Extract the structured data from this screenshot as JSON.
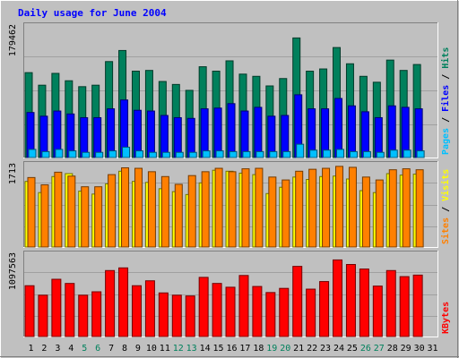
{
  "colors": {
    "background": "#c0c0c0",
    "title": "#0000ff",
    "hits": "#00805c",
    "files": "#0000ff",
    "pages": "#00c0ff",
    "visits": "#ffff00",
    "sites": "#ff8000",
    "kbytes": "#ff0000",
    "weekend_day": "#00805c",
    "weekday": "#000000"
  },
  "chart_data": {
    "type": "bar",
    "title": "Daily usage for June 2004",
    "x": [
      "1",
      "2",
      "3",
      "4",
      "5",
      "6",
      "7",
      "8",
      "9",
      "10",
      "11",
      "12",
      "13",
      "14",
      "15",
      "16",
      "17",
      "18",
      "19",
      "20",
      "21",
      "22",
      "23",
      "24",
      "25",
      "26",
      "27",
      "28",
      "29",
      "30",
      "31"
    ],
    "weekend_days": [
      "5",
      "6",
      "12",
      "13",
      "19",
      "20",
      "26",
      "27"
    ],
    "panels": [
      {
        "name": "hits-files-pages",
        "ymax": 179462,
        "ymax_label": "179462",
        "side_labels": [
          "Pages",
          "Files",
          "Hits"
        ],
        "series": [
          {
            "name": "Hits",
            "values": [
              115000,
              98000,
              114000,
              104000,
              96000,
              98000,
              130000,
              145000,
              117000,
              118000,
              103000,
              99000,
              91000,
              123000,
              117000,
              131000,
              113000,
              110000,
              97000,
              107000,
              162000,
              117000,
              120000,
              149000,
              127000,
              110000,
              102000,
              132000,
              118000,
              126000,
              0
            ]
          },
          {
            "name": "Files",
            "values": [
              61000,
              56000,
              63000,
              59000,
              54000,
              54000,
              66000,
              78000,
              64000,
              63000,
              57000,
              54000,
              53000,
              66000,
              67000,
              73000,
              63000,
              68000,
              56000,
              57000,
              85000,
              66000,
              66000,
              80000,
              70000,
              62000,
              54000,
              70000,
              68000,
              66000,
              0
            ]
          },
          {
            "name": "Pages",
            "values": [
              11000,
              8000,
              11000,
              9000,
              7000,
              7000,
              9000,
              14000,
              9000,
              7000,
              7000,
              7000,
              7000,
              9000,
              9000,
              8000,
              8000,
              8000,
              8000,
              8000,
              18000,
              10000,
              10000,
              11000,
              8000,
              8000,
              7000,
              10000,
              10000,
              9000,
              0
            ]
          }
        ]
      },
      {
        "name": "visits-sites",
        "ymax": 1713,
        "ymax_label": "1713",
        "side_labels": [
          "Sites",
          "Visits"
        ],
        "series": [
          {
            "name": "Visits",
            "values": [
              1350,
              1120,
              1450,
              1510,
              1150,
              1090,
              1300,
              1560,
              1350,
              1330,
              1200,
              1140,
              1080,
              1320,
              1580,
              1560,
              1520,
              1490,
              1100,
              1230,
              1440,
              1390,
              1450,
              1460,
              1400,
              1160,
              1120,
              1510,
              1480,
              1500,
              0
            ]
          },
          {
            "name": "Sites",
            "values": [
              1430,
              1280,
              1540,
              1460,
              1240,
              1240,
              1490,
              1630,
              1620,
              1550,
              1450,
              1290,
              1470,
              1550,
              1620,
              1550,
              1610,
              1620,
              1440,
              1380,
              1560,
              1600,
              1620,
              1660,
              1640,
              1440,
              1380,
              1590,
              1610,
              1590,
              0
            ]
          }
        ]
      },
      {
        "name": "kbytes",
        "ymax": 1097563,
        "ymax_label": "1097563",
        "side_labels": [
          "KBytes"
        ],
        "series": [
          {
            "name": "KBytes",
            "values": [
              670000,
              545000,
              755000,
              700000,
              545000,
              590000,
              870000,
              905000,
              670000,
              735000,
              575000,
              545000,
              535000,
              780000,
              700000,
              650000,
              805000,
              660000,
              580000,
              635000,
              925000,
              625000,
              725000,
              1010000,
              950000,
              890000,
              665000,
              870000,
              790000,
              810000,
              0
            ]
          }
        ]
      }
    ]
  }
}
